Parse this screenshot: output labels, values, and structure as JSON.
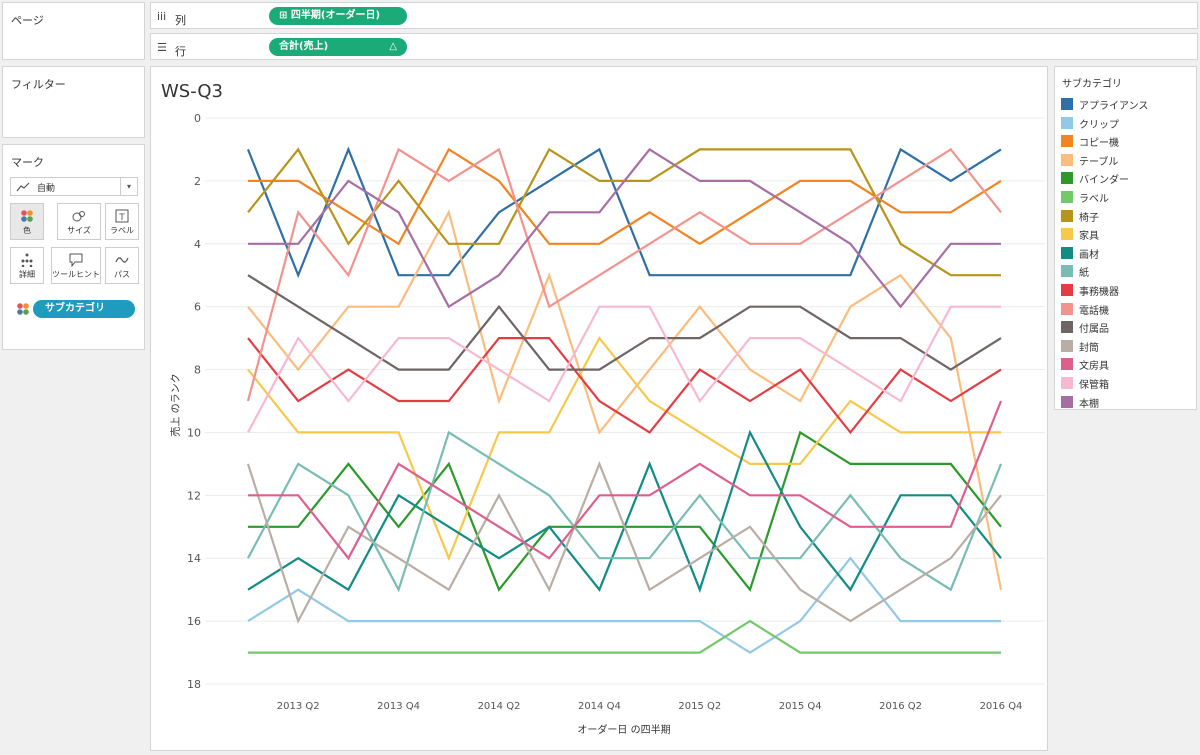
{
  "pages_panel": {
    "title": "ページ"
  },
  "filters_panel": {
    "title": "フィルター"
  },
  "marks_panel": {
    "title": "マーク",
    "mark_type": "自動",
    "buttons": [
      {
        "label": "色",
        "icon": "color-dots-icon"
      },
      {
        "label": "サイズ",
        "icon": "size-icon"
      },
      {
        "label": "ラベル",
        "icon": "label-icon"
      },
      {
        "label": "詳細",
        "icon": "detail-icon"
      },
      {
        "label": "ツールヒント",
        "icon": "tooltip-icon"
      },
      {
        "label": "パス",
        "icon": "path-icon"
      }
    ],
    "color_pill": "サブカテゴリ"
  },
  "shelves": {
    "columns": {
      "label": "列",
      "pill": "四半期(オーダー日)",
      "pill_prefix": "⊞"
    },
    "rows": {
      "label": "行",
      "pill": "合計(売上)",
      "pill_suffix": "△"
    }
  },
  "sheet_title": "WS-Q3",
  "legend": {
    "title": "サブカテゴリ"
  },
  "chart_data": {
    "type": "line",
    "xlabel": "オーダー日 の四半期",
    "ylabel": "売上 のランク",
    "ylim": [
      0,
      18
    ],
    "y_reversed": true,
    "yticks": [
      0,
      2,
      4,
      6,
      8,
      10,
      12,
      14,
      16,
      18
    ],
    "x": [
      "2013 Q1",
      "2013 Q2",
      "2013 Q3",
      "2013 Q4",
      "2014 Q1",
      "2014 Q2",
      "2014 Q3",
      "2014 Q4",
      "2015 Q1",
      "2015 Q2",
      "2015 Q3",
      "2015 Q4",
      "2016 Q1",
      "2016 Q2",
      "2016 Q3",
      "2016 Q4"
    ],
    "xtick_labels": [
      "",
      "2013 Q2",
      "",
      "2013 Q4",
      "",
      "2014 Q2",
      "",
      "2014 Q4",
      "",
      "2015 Q2",
      "",
      "2015 Q4",
      "",
      "2016 Q2",
      "",
      "2016 Q4"
    ],
    "grid": "horizontal",
    "legend_position": "right",
    "series": [
      {
        "name": "アプライアンス",
        "color": "#2e6fa8",
        "values": [
          1,
          5,
          1,
          5,
          5,
          3,
          2,
          1,
          5,
          5,
          5,
          5,
          5,
          1,
          2,
          1
        ]
      },
      {
        "name": "クリップ",
        "color": "#92c9e6",
        "values": [
          16,
          15,
          16,
          16,
          16,
          16,
          16,
          16,
          16,
          16,
          17,
          16,
          14,
          16,
          16,
          16
        ]
      },
      {
        "name": "コピー機",
        "color": "#f28421",
        "values": [
          2,
          2,
          3,
          4,
          1,
          2,
          4,
          4,
          3,
          4,
          3,
          2,
          2,
          3,
          3,
          2
        ]
      },
      {
        "name": "テーブル",
        "color": "#fbbc7d",
        "values": [
          6,
          8,
          6,
          6,
          3,
          9,
          5,
          10,
          8,
          6,
          8,
          9,
          6,
          5,
          7,
          15
        ]
      },
      {
        "name": "バインダー",
        "color": "#2b9a2b",
        "values": [
          13,
          13,
          11,
          13,
          11,
          15,
          13,
          13,
          13,
          13,
          15,
          10,
          11,
          11,
          11,
          13
        ]
      },
      {
        "name": "ラベル",
        "color": "#73c86b",
        "values": [
          17,
          17,
          17,
          17,
          17,
          17,
          17,
          17,
          17,
          17,
          16,
          17,
          17,
          17,
          17,
          17
        ]
      },
      {
        "name": "椅子",
        "color": "#b8941a",
        "values": [
          3,
          1,
          4,
          2,
          4,
          4,
          1,
          2,
          2,
          1,
          1,
          1,
          1,
          4,
          5,
          5
        ]
      },
      {
        "name": "家具",
        "color": "#f7c84a",
        "values": [
          8,
          10,
          10,
          10,
          14,
          10,
          10,
          7,
          9,
          10,
          11,
          11,
          9,
          10,
          10,
          10
        ]
      },
      {
        "name": "画材",
        "color": "#128c84",
        "values": [
          15,
          14,
          15,
          12,
          13,
          14,
          13,
          15,
          11,
          15,
          10,
          13,
          15,
          12,
          12,
          14
        ]
      },
      {
        "name": "紙",
        "color": "#78bcb4",
        "values": [
          14,
          11,
          12,
          15,
          10,
          11,
          12,
          14,
          14,
          12,
          14,
          14,
          12,
          14,
          15,
          11
        ]
      },
      {
        "name": "事務機器",
        "color": "#e53c44",
        "values": [
          7,
          9,
          8,
          9,
          9,
          7,
          7,
          9,
          10,
          8,
          9,
          8,
          10,
          8,
          9,
          8
        ]
      },
      {
        "name": "電話機",
        "color": "#f4928d",
        "values": [
          9,
          3,
          5,
          1,
          2,
          1,
          6,
          5,
          4,
          3,
          4,
          4,
          3,
          2,
          1,
          3
        ]
      },
      {
        "name": "付属品",
        "color": "#6f6565",
        "values": [
          5,
          6,
          7,
          8,
          8,
          6,
          8,
          8,
          7,
          7,
          6,
          6,
          7,
          7,
          8,
          7
        ]
      },
      {
        "name": "封筒",
        "color": "#b9aea6",
        "values": [
          11,
          16,
          13,
          14,
          15,
          12,
          15,
          11,
          15,
          14,
          13,
          15,
          16,
          15,
          14,
          12
        ]
      },
      {
        "name": "文房具",
        "color": "#de5f8e",
        "values": [
          12,
          12,
          14,
          11,
          12,
          13,
          14,
          12,
          12,
          11,
          12,
          12,
          13,
          13,
          13,
          9
        ]
      },
      {
        "name": "保管箱",
        "color": "#f8b8cf",
        "values": [
          10,
          7,
          9,
          7,
          7,
          8,
          9,
          6,
          6,
          9,
          7,
          7,
          8,
          9,
          6,
          6
        ]
      },
      {
        "name": "本棚",
        "color": "#a66fa3",
        "values": [
          4,
          4,
          2,
          3,
          6,
          5,
          3,
          3,
          1,
          2,
          2,
          3,
          4,
          6,
          4,
          4
        ]
      }
    ]
  }
}
